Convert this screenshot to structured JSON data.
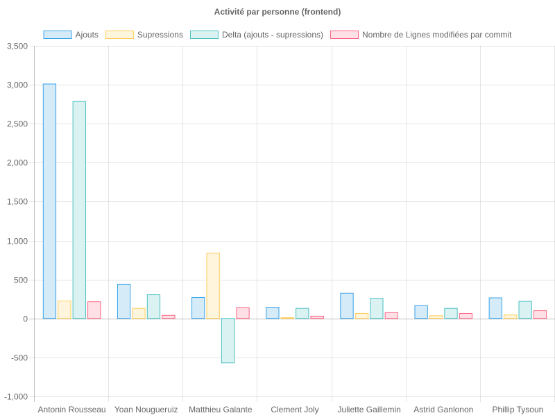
{
  "chart_data": {
    "type": "bar",
    "title": "Activité par personne (frontend)",
    "categories": [
      "Antonin Rousseau",
      "Yoan Nougueruiz",
      "Matthieu Galante",
      "Clement Joly",
      "Juliette Gaillemin",
      "Astrid Ganlonon",
      "Phillip Tysoun"
    ],
    "series": [
      {
        "name": "Ajouts",
        "values": [
          3010,
          440,
          270,
          145,
          325,
          165,
          265
        ],
        "fill": "#d6ebf8",
        "stroke": "#36a2eb"
      },
      {
        "name": "Supressions",
        "values": [
          225,
          130,
          840,
          10,
          65,
          35,
          45
        ],
        "fill": "#fff5dd",
        "stroke": "#ffcd56"
      },
      {
        "name": "Delta (ajouts - supressions)",
        "values": [
          2785,
          305,
          -570,
          130,
          260,
          130,
          220
        ],
        "fill": "#dbf2f2",
        "stroke": "#4bc0c0"
      },
      {
        "name": "Nombre de Lignes modifiées par commit",
        "values": [
          215,
          40,
          140,
          30,
          75,
          65,
          100
        ],
        "fill": "#ffe0e6",
        "stroke": "#ff6384"
      }
    ],
    "ylim": [
      -1000,
      3500
    ],
    "yticks": [
      "3,500",
      "3,000",
      "2,500",
      "2,000",
      "1,500",
      "1,000",
      "500",
      "0",
      "-500",
      "-1,000"
    ],
    "ytick_values": [
      3500,
      3000,
      2500,
      2000,
      1500,
      1000,
      500,
      0,
      -500,
      -1000
    ],
    "grid": true,
    "legend_position": "top"
  }
}
